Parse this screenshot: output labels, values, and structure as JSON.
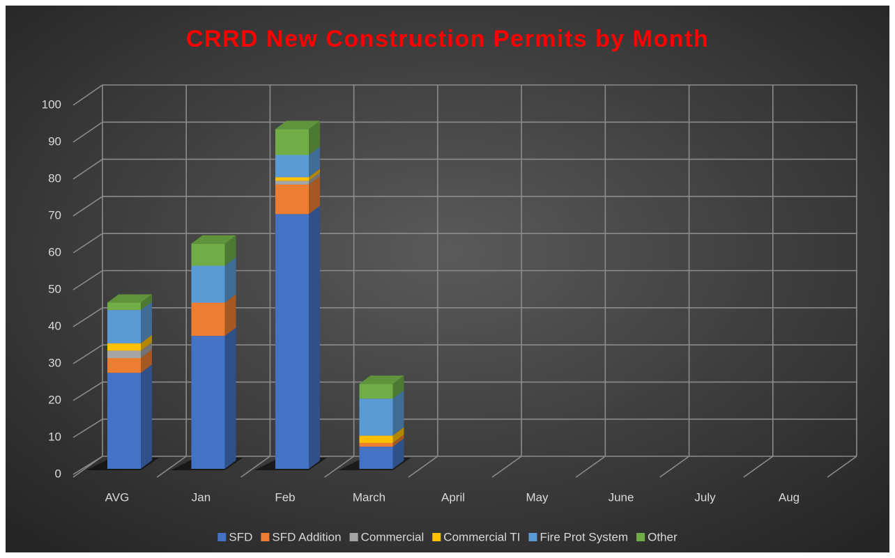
{
  "chart_data": {
    "type": "bar3d_stacked",
    "title": "CRRD New Construction Permits by Month",
    "categories": [
      "AVG",
      "Jan",
      "Feb",
      "March",
      "April",
      "May",
      "June",
      "July",
      "Aug"
    ],
    "series": [
      {
        "name": "SFD",
        "color": "#4472c4",
        "values": [
          26,
          36,
          69,
          6,
          null,
          null,
          null,
          null,
          null
        ]
      },
      {
        "name": "SFD Addition",
        "color": "#ed7d31",
        "values": [
          4,
          9,
          8,
          1,
          null,
          null,
          null,
          null,
          null
        ]
      },
      {
        "name": "Commercial",
        "color": "#a5a5a5",
        "values": [
          2,
          0,
          1,
          0,
          null,
          null,
          null,
          null,
          null
        ]
      },
      {
        "name": "Commercial TI",
        "color": "#ffc000",
        "values": [
          2,
          0,
          1,
          2,
          null,
          null,
          null,
          null,
          null
        ]
      },
      {
        "name": "Fire Prot System",
        "color": "#5b9bd5",
        "values": [
          9,
          10,
          6,
          10,
          null,
          null,
          null,
          null,
          null
        ]
      },
      {
        "name": "Other",
        "color": "#70ad47",
        "values": [
          2,
          6,
          7,
          4,
          null,
          null,
          null,
          null,
          null
        ]
      }
    ],
    "ylim": [
      0,
      100
    ],
    "yticks": [
      0,
      10,
      20,
      30,
      40,
      50,
      60,
      70,
      80,
      90,
      100
    ],
    "grid": true,
    "legend": "bottom"
  }
}
